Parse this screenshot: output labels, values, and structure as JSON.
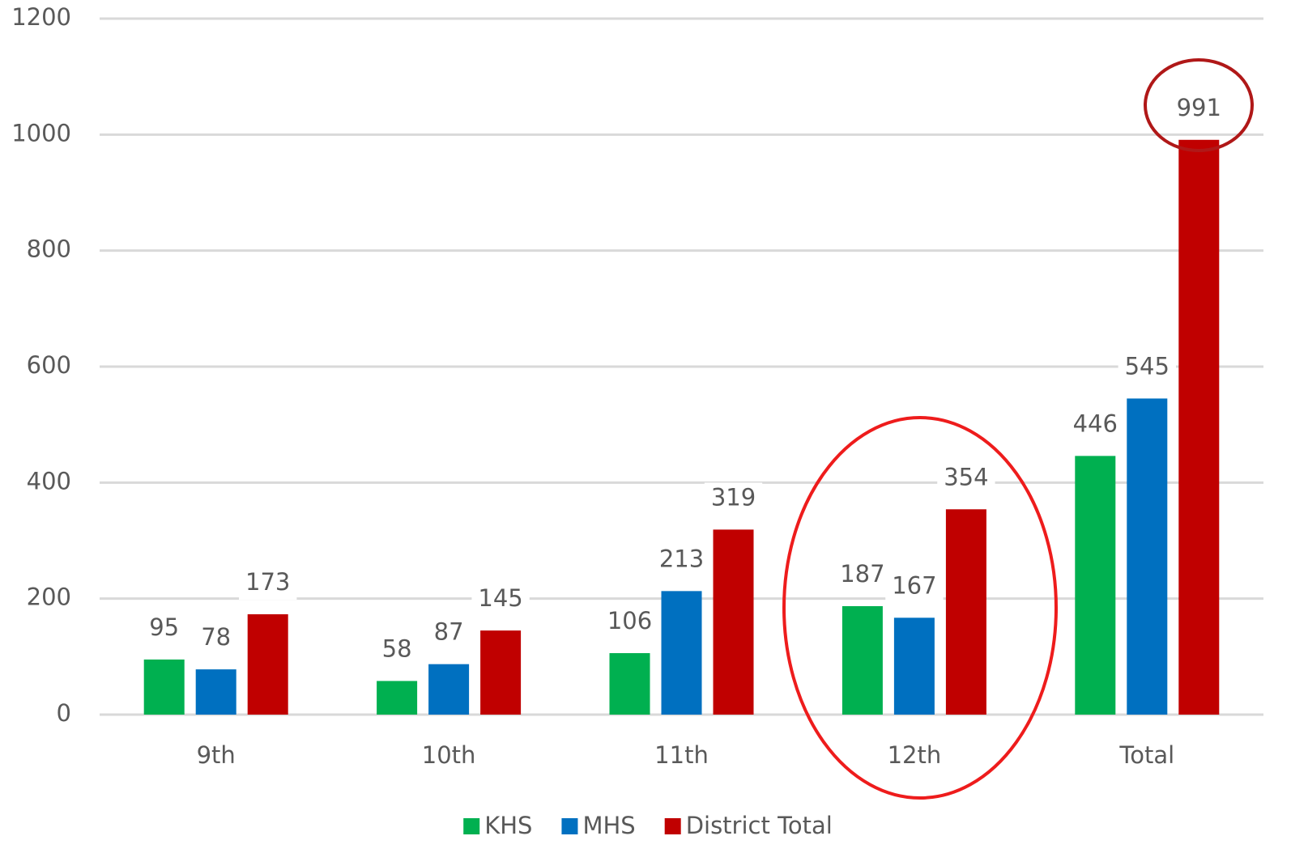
{
  "chart_data": {
    "type": "bar",
    "categories": [
      "9th",
      "10th",
      "11th",
      "12th",
      "Total"
    ],
    "series": [
      {
        "name": "KHS",
        "color": "#00b050",
        "values": [
          95,
          58,
          106,
          187,
          446
        ]
      },
      {
        "name": "MHS",
        "color": "#0070c0",
        "values": [
          78,
          87,
          213,
          167,
          545
        ]
      },
      {
        "name": "District Total",
        "color": "#c00000",
        "values": [
          173,
          145,
          319,
          354,
          991
        ]
      }
    ],
    "ylim": [
      0,
      1200
    ],
    "yticks": [
      0,
      200,
      400,
      600,
      800,
      1000,
      1200
    ],
    "grid": true,
    "legend": "bottom"
  }
}
